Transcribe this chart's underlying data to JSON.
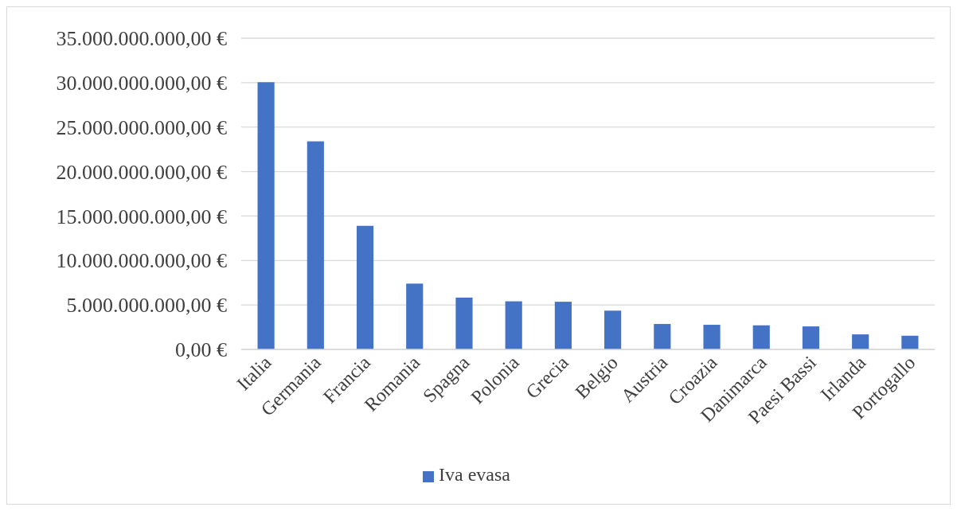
{
  "chart_data": {
    "type": "bar",
    "categories": [
      "Italia",
      "Germania",
      "Francia",
      "Romania",
      "Spagna",
      "Polonia",
      "Grecia",
      "Belgio",
      "Austria",
      "Croazia",
      "Danimarca",
      "Paesi Bassi",
      "Irlanda",
      "Portogallo"
    ],
    "series": [
      {
        "name": "Iva evasa",
        "color": "#4472c4",
        "values": [
          30050000000,
          23400000000,
          13900000000,
          7400000000,
          5830000000,
          5410000000,
          5360000000,
          4360000000,
          2860000000,
          2770000000,
          2710000000,
          2590000000,
          1690000000,
          1540000000
        ]
      }
    ],
    "ylim": [
      0,
      35000000000
    ],
    "yticks": [
      {
        "value": 0,
        "label": "0,00 €"
      },
      {
        "value": 5000000000,
        "label": "5.000.000.000,00 €"
      },
      {
        "value": 10000000000,
        "label": "10.000.000.000,00 €"
      },
      {
        "value": 15000000000,
        "label": "15.000.000.000,00 €"
      },
      {
        "value": 20000000000,
        "label": "20.000.000.000,00 €"
      },
      {
        "value": 25000000000,
        "label": "25.000.000.000,00 €"
      },
      {
        "value": 30000000000,
        "label": "30.000.000.000,00 €"
      },
      {
        "value": 35000000000,
        "label": "35.000.000.000,00 €"
      }
    ],
    "grid": "y",
    "legend": "bottom"
  }
}
